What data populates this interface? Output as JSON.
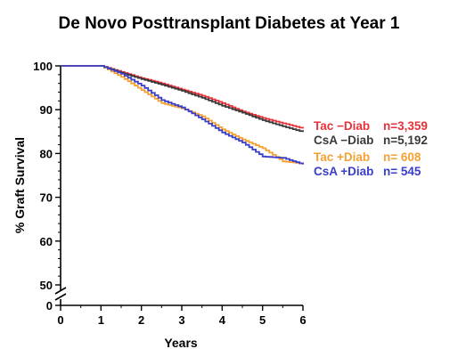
{
  "chart_data": {
    "type": "line",
    "title": "De Novo Posttransplant Diabetes at Year 1",
    "xlabel": "Years",
    "ylabel": "% Graft Survival",
    "xlim": [
      0,
      6
    ],
    "ylim": [
      0,
      100
    ],
    "axis_break": true,
    "x_ticks": [
      "0",
      "1",
      "2",
      "3",
      "4",
      "5",
      "6"
    ],
    "y_ticks": [
      "0",
      "50",
      "60",
      "70",
      "80",
      "90",
      "100"
    ],
    "grid": false,
    "legend_placement": "right",
    "series": [
      {
        "name": "Tac −Diab",
        "n_label": "n=3,359",
        "color": "#e8313a",
        "x": [
          0,
          1,
          1.5,
          2,
          2.5,
          3,
          3.5,
          4,
          4.5,
          5,
          5.5,
          6
        ],
        "y": [
          100,
          100,
          98.6,
          97.2,
          96,
          94.6,
          93.2,
          91.5,
          89.6,
          88.1,
          86.9,
          85.7
        ]
      },
      {
        "name": "CsA −Diab",
        "n_label": "n=5,192",
        "color": "#3a3a3a",
        "x": [
          0,
          1,
          1.5,
          2,
          2.5,
          3,
          3.5,
          4,
          4.5,
          5,
          5.5,
          6
        ],
        "y": [
          100,
          100,
          98.4,
          97,
          95.7,
          94.3,
          92.7,
          90.9,
          89.3,
          87.6,
          86.2,
          84.9
        ]
      },
      {
        "name": "Tac  +Diab",
        "n_label": "n=   608",
        "color": "#f5a032",
        "x": [
          0,
          1,
          1.5,
          2,
          2.5,
          3,
          3.5,
          4,
          4.5,
          5,
          5.5,
          6
        ],
        "y": [
          100,
          100,
          97.5,
          94.5,
          91.5,
          90.3,
          88.5,
          85.5,
          83.2,
          81.2,
          78.2,
          77.7
        ]
      },
      {
        "name": "CsA +Diab",
        "n_label": "n=   545",
        "color": "#3a3ec8",
        "x": [
          0,
          1,
          1.5,
          2,
          2.5,
          3,
          3.5,
          4,
          4.5,
          5,
          5.5,
          6
        ],
        "y": [
          100,
          100,
          98.2,
          95.5,
          92.2,
          90.5,
          87.8,
          84.8,
          82.5,
          79.3,
          79,
          77.5
        ]
      }
    ]
  }
}
